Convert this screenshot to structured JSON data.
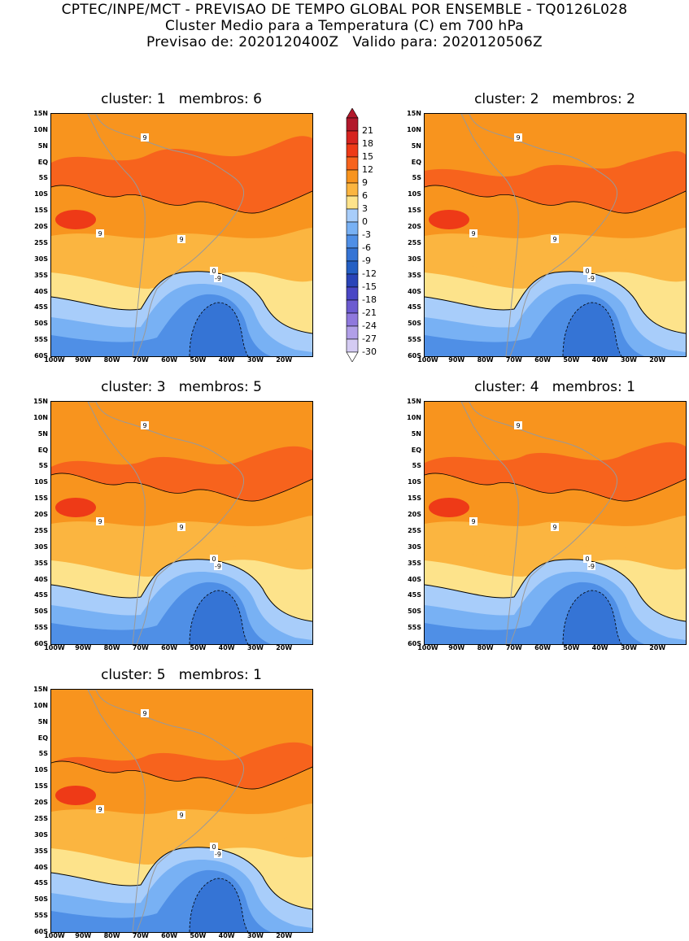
{
  "header": {
    "line1": "CPTEC/INPE/MCT - PREVISAO DE TEMPO GLOBAL POR ENSEMBLE - TQ0126L028",
    "line2": "Cluster Medio para a Temperatura (C) em 700 hPa",
    "line3": "Previsao de: 2020120400Z   Valido para: 2020120506Z"
  },
  "panels": [
    {
      "title": "cluster: 1   membros: 6"
    },
    {
      "title": "cluster: 2   membros: 2"
    },
    {
      "title": "cluster: 3   membros: 5"
    },
    {
      "title": "cluster: 4   membros: 1"
    },
    {
      "title": "cluster: 5   membros: 1"
    }
  ],
  "lat_labels": [
    "15N",
    "10N",
    "5N",
    "EQ",
    "5S",
    "10S",
    "15S",
    "20S",
    "25S",
    "30S",
    "35S",
    "40S",
    "45S",
    "50S",
    "55S",
    "60S"
  ],
  "lon_labels": [
    "100W",
    "90W",
    "80W",
    "70W",
    "60W",
    "50W",
    "40W",
    "30W",
    "20W"
  ],
  "colorbar": {
    "labels": [
      "21",
      "18",
      "15",
      "12",
      "9",
      "6",
      "3",
      "0",
      "-3",
      "-6",
      "-9",
      "-12",
      "-15",
      "-18",
      "-21",
      "-24",
      "-27",
      "-30"
    ],
    "colors": [
      "#b2182b",
      "#d6231f",
      "#ee3a17",
      "#f7631d",
      "#f8941e",
      "#fbb540",
      "#fde38b",
      "#a8cdfa",
      "#78b1f4",
      "#4f8fe6",
      "#3574d5",
      "#245fc4",
      "#2a44b8",
      "#4a47c5",
      "#6c5bd0",
      "#8f78dd",
      "#b19fe8",
      "#d4cbf2"
    ]
  },
  "contour_labels": {
    "zero": "0",
    "nine": "9",
    "minus_nine": "-9"
  },
  "colors": {
    "c12": "#f7631d",
    "c9": "#f8941e",
    "c6": "#fbb540",
    "c3": "#fde38b",
    "c0": "#a8cdfa",
    "cm3": "#78b1f4",
    "cm6": "#4f8fe6",
    "cm9": "#3574d5",
    "c15": "#ee3a17"
  }
}
